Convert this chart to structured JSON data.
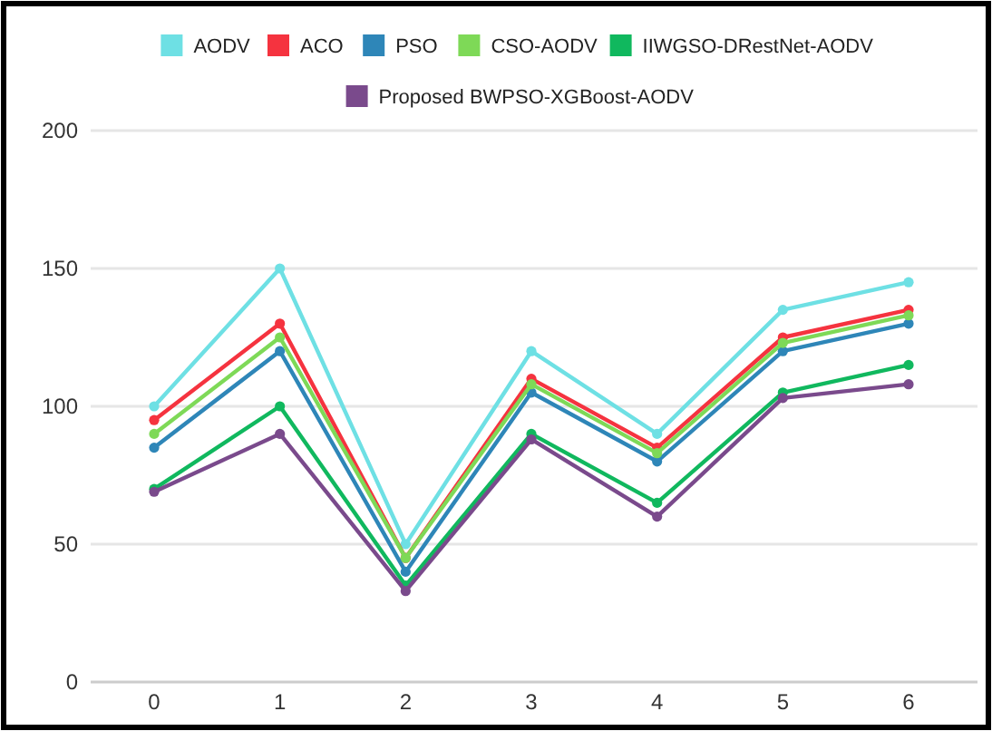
{
  "chart_data": {
    "type": "line",
    "categories": [
      "0",
      "1",
      "2",
      "3",
      "4",
      "5",
      "6"
    ],
    "series": [
      {
        "name": "AODV",
        "color": "#6ee0e4",
        "values": [
          100,
          150,
          50,
          120,
          90,
          135,
          145
        ]
      },
      {
        "name": "ACO",
        "color": "#f5333f",
        "values": [
          95,
          130,
          45,
          110,
          85,
          125,
          135
        ]
      },
      {
        "name": "PSO",
        "color": "#2e86b8",
        "values": [
          85,
          120,
          40,
          105,
          80,
          120,
          130
        ]
      },
      {
        "name": "CSO-AODV",
        "color": "#7ed957",
        "values": [
          90,
          125,
          45,
          108,
          83,
          123,
          133
        ]
      },
      {
        "name": "IIWGSO-DRestNet-AODV",
        "color": "#10b85e",
        "values": [
          70,
          100,
          35,
          90,
          65,
          105,
          115
        ]
      },
      {
        "name": "Proposed BWPSO-XGBoost-AODV",
        "color": "#7a4a8c",
        "values": [
          69,
          90,
          33,
          88,
          60,
          103,
          108
        ]
      }
    ],
    "ylim": [
      0,
      200
    ],
    "yticks": [
      0,
      50,
      100,
      150,
      200
    ],
    "grid": "y",
    "legend": "top",
    "marker": "circle",
    "line_style": "solid"
  }
}
